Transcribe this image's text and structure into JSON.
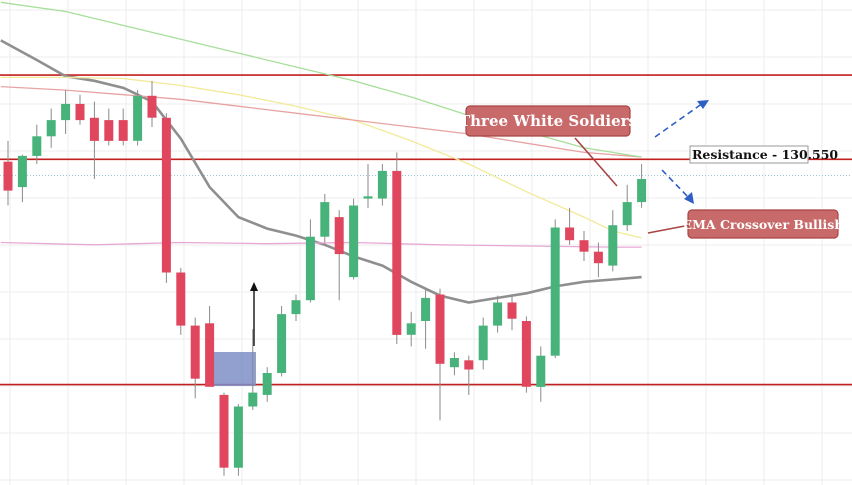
{
  "chart_data": {
    "type": "candlestick",
    "grid": true,
    "y_domain": [
      127.2,
      131.4
    ],
    "x_domain": [
      0,
      55
    ],
    "candles": [
      {
        "i": 0,
        "o": 130.0,
        "h": 130.18,
        "l": 129.62,
        "c": 129.75
      },
      {
        "i": 1,
        "o": 129.78,
        "h": 130.06,
        "l": 129.65,
        "c": 130.05
      },
      {
        "i": 2,
        "o": 130.05,
        "h": 130.32,
        "l": 129.98,
        "c": 130.22
      },
      {
        "i": 3,
        "o": 130.22,
        "h": 130.46,
        "l": 130.12,
        "c": 130.36
      },
      {
        "i": 4,
        "o": 130.36,
        "h": 130.62,
        "l": 130.24,
        "c": 130.5
      },
      {
        "i": 5,
        "o": 130.5,
        "h": 130.58,
        "l": 130.32,
        "c": 130.36
      },
      {
        "i": 6,
        "o": 130.38,
        "h": 130.52,
        "l": 129.85,
        "c": 130.18
      },
      {
        "i": 7,
        "o": 130.36,
        "h": 130.46,
        "l": 130.14,
        "c": 130.18
      },
      {
        "i": 8,
        "o": 130.36,
        "h": 130.46,
        "l": 130.14,
        "c": 130.18
      },
      {
        "i": 9,
        "o": 130.18,
        "h": 130.62,
        "l": 130.14,
        "c": 130.57
      },
      {
        "i": 10,
        "o": 130.57,
        "h": 130.7,
        "l": 130.3,
        "c": 130.38
      },
      {
        "i": 11,
        "o": 130.38,
        "h": 130.42,
        "l": 128.95,
        "c": 129.04
      },
      {
        "i": 12,
        "o": 129.04,
        "h": 129.08,
        "l": 128.5,
        "c": 128.58
      },
      {
        "i": 13,
        "o": 128.58,
        "h": 128.65,
        "l": 127.95,
        "c": 128.12
      },
      {
        "i": 14,
        "o": 128.6,
        "h": 128.75,
        "l": 128.05,
        "c": 128.05
      },
      {
        "i": 15,
        "o": 127.98,
        "h": 128.0,
        "l": 127.28,
        "c": 127.35
      },
      {
        "i": 16,
        "o": 127.35,
        "h": 127.9,
        "l": 127.28,
        "c": 127.88
      },
      {
        "i": 17,
        "o": 127.88,
        "h": 128.55,
        "l": 127.85,
        "c": 128.0
      },
      {
        "i": 18,
        "o": 127.98,
        "h": 128.22,
        "l": 127.92,
        "c": 128.17
      },
      {
        "i": 19,
        "o": 128.17,
        "h": 128.75,
        "l": 128.14,
        "c": 128.68
      },
      {
        "i": 20,
        "o": 128.68,
        "h": 128.85,
        "l": 128.62,
        "c": 128.8
      },
      {
        "i": 21,
        "o": 128.8,
        "h": 129.5,
        "l": 128.78,
        "c": 129.35
      },
      {
        "i": 22,
        "o": 129.35,
        "h": 129.72,
        "l": 129.3,
        "c": 129.65
      },
      {
        "i": 23,
        "o": 129.52,
        "h": 129.58,
        "l": 128.8,
        "c": 129.2
      },
      {
        "i": 24,
        "o": 129.0,
        "h": 129.68,
        "l": 128.98,
        "c": 129.62
      },
      {
        "i": 25,
        "o": 129.68,
        "h": 129.98,
        "l": 129.6,
        "c": 129.7
      },
      {
        "i": 26,
        "o": 129.68,
        "h": 129.98,
        "l": 129.62,
        "c": 129.92
      },
      {
        "i": 27,
        "o": 129.92,
        "h": 130.08,
        "l": 128.42,
        "c": 128.5
      },
      {
        "i": 28,
        "o": 128.5,
        "h": 128.7,
        "l": 128.4,
        "c": 128.6
      },
      {
        "i": 29,
        "o": 128.62,
        "h": 128.9,
        "l": 128.38,
        "c": 128.82
      },
      {
        "i": 30,
        "o": 128.85,
        "h": 128.9,
        "l": 127.76,
        "c": 128.25
      },
      {
        "i": 31,
        "o": 128.22,
        "h": 128.35,
        "l": 128.15,
        "c": 128.3
      },
      {
        "i": 32,
        "o": 128.28,
        "h": 128.32,
        "l": 127.98,
        "c": 128.2
      },
      {
        "i": 33,
        "o": 128.28,
        "h": 128.65,
        "l": 128.2,
        "c": 128.58
      },
      {
        "i": 34,
        "o": 128.58,
        "h": 128.84,
        "l": 128.52,
        "c": 128.78
      },
      {
        "i": 35,
        "o": 128.78,
        "h": 128.84,
        "l": 128.54,
        "c": 128.64
      },
      {
        "i": 36,
        "o": 128.62,
        "h": 128.66,
        "l": 128.0,
        "c": 128.05
      },
      {
        "i": 37,
        "o": 128.05,
        "h": 128.4,
        "l": 127.92,
        "c": 128.32
      },
      {
        "i": 38,
        "o": 128.32,
        "h": 129.5,
        "l": 128.3,
        "c": 129.43
      },
      {
        "i": 39,
        "o": 129.43,
        "h": 129.6,
        "l": 129.28,
        "c": 129.32
      },
      {
        "i": 40,
        "o": 129.32,
        "h": 129.4,
        "l": 129.14,
        "c": 129.22
      },
      {
        "i": 41,
        "o": 129.22,
        "h": 129.3,
        "l": 129.0,
        "c": 129.12
      },
      {
        "i": 42,
        "o": 129.1,
        "h": 129.58,
        "l": 129.05,
        "c": 129.45
      },
      {
        "i": 43,
        "o": 129.45,
        "h": 129.8,
        "l": 129.4,
        "c": 129.65
      },
      {
        "i": 44,
        "o": 129.65,
        "h": 129.98,
        "l": 129.6,
        "c": 129.85
      }
    ],
    "moving_averages": [
      {
        "color": "#8f8f8f",
        "points": [
          [
            -0.5,
            131.05
          ],
          [
            2,
            130.88
          ],
          [
            4,
            130.74
          ],
          [
            6,
            130.7
          ],
          [
            8,
            130.64
          ],
          [
            10,
            130.52
          ],
          [
            12,
            130.2
          ],
          [
            14,
            129.78
          ],
          [
            16,
            129.52
          ],
          [
            18,
            129.42
          ],
          [
            20,
            129.36
          ],
          [
            22,
            129.28
          ],
          [
            24,
            129.18
          ],
          [
            26,
            129.1
          ],
          [
            28,
            128.96
          ],
          [
            30,
            128.84
          ],
          [
            32,
            128.78
          ],
          [
            34,
            128.82
          ],
          [
            36,
            128.86
          ],
          [
            38,
            128.92
          ],
          [
            40,
            128.96
          ],
          [
            42,
            128.98
          ],
          [
            44,
            129.0
          ]
        ]
      },
      {
        "color": "#f2ea9a",
        "points": [
          [
            -0.5,
            130.73
          ],
          [
            4,
            130.73
          ],
          [
            8,
            130.72
          ],
          [
            12,
            130.66
          ],
          [
            16,
            130.58
          ],
          [
            20,
            130.48
          ],
          [
            24,
            130.36
          ],
          [
            28,
            130.18
          ],
          [
            32,
            129.98
          ],
          [
            36,
            129.74
          ],
          [
            40,
            129.52
          ],
          [
            42,
            129.4
          ],
          [
            44,
            129.34
          ]
        ]
      },
      {
        "color": "#e7a3a3",
        "points": [
          [
            -0.5,
            130.65
          ],
          [
            4,
            130.62
          ],
          [
            8,
            130.58
          ],
          [
            12,
            130.54
          ],
          [
            16,
            130.48
          ],
          [
            20,
            130.42
          ],
          [
            24,
            130.36
          ],
          [
            28,
            130.3
          ],
          [
            32,
            130.24
          ],
          [
            36,
            130.16
          ],
          [
            40,
            130.08
          ],
          [
            44,
            130.04
          ]
        ]
      },
      {
        "color": "#a6df9a",
        "points": [
          [
            -0.5,
            131.38
          ],
          [
            4,
            131.3
          ],
          [
            8,
            131.18
          ],
          [
            12,
            131.06
          ],
          [
            16,
            130.94
          ],
          [
            20,
            130.82
          ],
          [
            24,
            130.7
          ],
          [
            28,
            130.56
          ],
          [
            32,
            130.4
          ],
          [
            36,
            130.26
          ],
          [
            40,
            130.12
          ],
          [
            44,
            130.04
          ]
        ]
      },
      {
        "color": "#e8a8d6",
        "points": [
          [
            -0.5,
            129.3
          ],
          [
            6,
            129.28
          ],
          [
            12,
            129.3
          ],
          [
            18,
            129.29
          ],
          [
            24,
            129.3
          ],
          [
            30,
            129.28
          ],
          [
            36,
            129.27
          ],
          [
            42,
            129.26
          ],
          [
            44,
            129.26
          ]
        ]
      }
    ],
    "horizontal_lines": [
      {
        "value": 130.75,
        "color": "#c21f1f"
      },
      {
        "value": 130.02,
        "color": "#c21f1f"
      },
      {
        "value": 128.07,
        "color": "#c21f1f"
      }
    ],
    "annotations": {
      "three_white_soldiers": "Three White Soldiers",
      "resistance": "Resistance - 130.550",
      "ema_crossover": "EMA Crossover Bullish"
    },
    "colors": {
      "bull": "#47b37a",
      "bear": "#e0475e",
      "wick": "#8a8a8a",
      "grid": "#ececec",
      "annotation_fill": "#c96a6a",
      "annotation_border": "#a94444",
      "arrow_blue": "#2f5fc4",
      "highlight_box": "#7e8fc7"
    }
  }
}
